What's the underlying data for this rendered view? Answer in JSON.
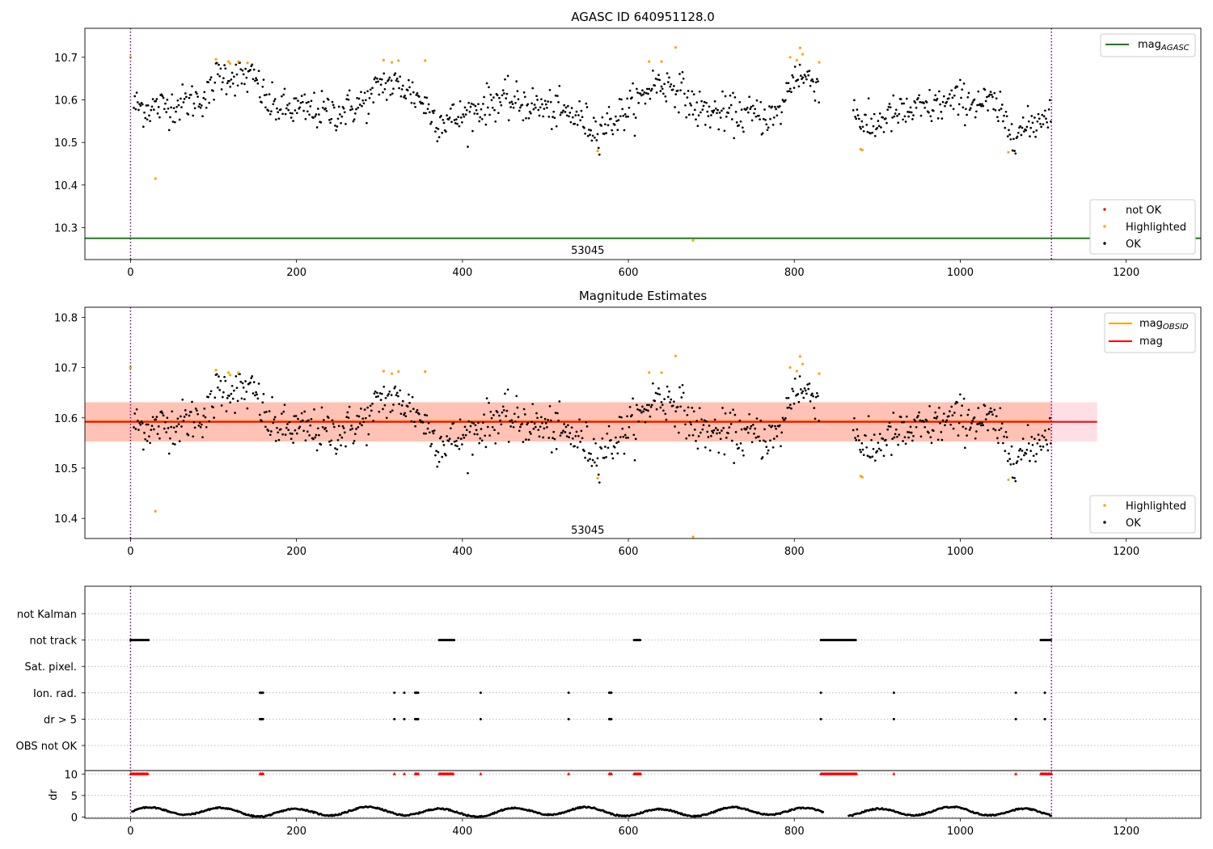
{
  "chart_data": [
    {
      "type": "scatter",
      "title": "AGASC ID 640951128.0",
      "xlim": [
        -55,
        1290
      ],
      "ylim": [
        10.225,
        10.768
      ],
      "xticks": [
        "0",
        "200",
        "400",
        "600",
        "800",
        "1000",
        "1200"
      ],
      "xtick_values": [
        0,
        200,
        400,
        600,
        800,
        1000,
        1200
      ],
      "yticks": [
        "10.3",
        "10.4",
        "10.5",
        "10.6",
        "10.7"
      ],
      "ytick_values": [
        10.3,
        10.4,
        10.5,
        10.6,
        10.7
      ],
      "vlines": [
        0,
        1110
      ],
      "obsid_label": "53045",
      "obsid_label_pos": [
        551,
        10.248
      ],
      "hline": {
        "name": "mag_AGASC",
        "value": 10.275,
        "color": "#008000"
      },
      "legend_top": [
        {
          "label": "mag",
          "sub": "AGASC",
          "color": "#008000"
        }
      ],
      "legend_bottom": [
        {
          "label": "not OK",
          "color": "#ff0000"
        },
        {
          "label": "Highlighted",
          "color": "#ffa500"
        },
        {
          "label": "OK",
          "color": "#000000"
        }
      ],
      "highlighted_points": [
        [
          0,
          10.7
        ],
        [
          30,
          10.415
        ],
        [
          103,
          10.695
        ],
        [
          118,
          10.69
        ],
        [
          120,
          10.685
        ],
        [
          130,
          10.69
        ],
        [
          141,
          10.687
        ],
        [
          305,
          10.693
        ],
        [
          315,
          10.688
        ],
        [
          323,
          10.692
        ],
        [
          355,
          10.692
        ],
        [
          563,
          10.48
        ],
        [
          625,
          10.69
        ],
        [
          640,
          10.69
        ],
        [
          657,
          10.723
        ],
        [
          678,
          10.27
        ],
        [
          795,
          10.7
        ],
        [
          803,
          10.693
        ],
        [
          807,
          10.722
        ],
        [
          810,
          10.707
        ],
        [
          830,
          10.688
        ],
        [
          880,
          10.484
        ],
        [
          882,
          10.482
        ],
        [
          1058,
          10.477
        ]
      ]
    },
    {
      "type": "scatter",
      "title": "Magnitude Estimates",
      "xlim": [
        -55,
        1290
      ],
      "ylim": [
        10.36,
        10.82
      ],
      "xticks": [
        "0",
        "200",
        "400",
        "600",
        "800",
        "1000",
        "1200"
      ],
      "xtick_values": [
        0,
        200,
        400,
        600,
        800,
        1000,
        1200
      ],
      "yticks": [
        "10.4",
        "10.5",
        "10.6",
        "10.7",
        "10.8"
      ],
      "ytick_values": [
        10.4,
        10.5,
        10.6,
        10.7,
        10.8
      ],
      "vlines": [
        0,
        1110
      ],
      "obsid_label": "53045",
      "obsid_label_pos": [
        551,
        10.378
      ],
      "mag": 10.592,
      "mag_band": [
        10.553,
        10.631
      ],
      "mag_obsid_band": [
        10.553,
        10.631
      ],
      "mag_obsid_band_x": [
        0,
        1110
      ],
      "legend_top": [
        {
          "label": "mag",
          "sub": "OBSID",
          "color": "#ffa500"
        },
        {
          "label": "mag",
          "sub": "",
          "color": "#ff0000"
        }
      ],
      "legend_bottom": [
        {
          "label": "Highlighted",
          "color": "#ffa500"
        },
        {
          "label": "OK",
          "color": "#000000"
        }
      ],
      "highlighted_points": [
        [
          0,
          10.7
        ],
        [
          30,
          10.414
        ],
        [
          103,
          10.695
        ],
        [
          118,
          10.69
        ],
        [
          120,
          10.685
        ],
        [
          130,
          10.69
        ],
        [
          305,
          10.693
        ],
        [
          315,
          10.688
        ],
        [
          323,
          10.692
        ],
        [
          355,
          10.692
        ],
        [
          563,
          10.48
        ],
        [
          625,
          10.69
        ],
        [
          640,
          10.69
        ],
        [
          657,
          10.723
        ],
        [
          678,
          10.362
        ],
        [
          795,
          10.7
        ],
        [
          803,
          10.693
        ],
        [
          807,
          10.722
        ],
        [
          810,
          10.707
        ],
        [
          830,
          10.688
        ],
        [
          880,
          10.484
        ],
        [
          882,
          10.482
        ],
        [
          1058,
          10.477
        ]
      ]
    },
    {
      "type": "scatter",
      "title": "",
      "xlim": [
        -55,
        1290
      ],
      "xticks": [
        "0",
        "200",
        "400",
        "600",
        "800",
        "1000",
        "1200"
      ],
      "xtick_values": [
        0,
        200,
        400,
        600,
        800,
        1000,
        1200
      ],
      "vlines": [
        0,
        1110
      ],
      "flag_categories": [
        "not Kalman",
        "not track",
        "Sat. pixel.",
        "Ion. rad.",
        "dr > 5",
        "OBS not OK"
      ],
      "flags": {
        "not track": [
          [
            0,
            22
          ],
          [
            372,
            390
          ],
          [
            607,
            615
          ],
          [
            832,
            875
          ],
          [
            1097,
            1110
          ]
        ],
        "Ion. rad.": [
          [
            156,
            160
          ],
          [
            318,
            318
          ],
          [
            330,
            330
          ],
          [
            343,
            347
          ],
          [
            422,
            422
          ],
          [
            528,
            528
          ],
          [
            577,
            580
          ],
          [
            832,
            832
          ],
          [
            920,
            920
          ],
          [
            1067,
            1067
          ],
          [
            1102,
            1102
          ]
        ],
        "dr > 5": [
          [
            156,
            160
          ],
          [
            318,
            318
          ],
          [
            330,
            330
          ],
          [
            343,
            347
          ],
          [
            422,
            422
          ],
          [
            528,
            528
          ],
          [
            577,
            580
          ],
          [
            832,
            832
          ],
          [
            920,
            920
          ],
          [
            1067,
            1067
          ],
          [
            1102,
            1102
          ]
        ],
        "OBS not OK": []
      },
      "dr_ylabel": "dr",
      "dr_yticks": [
        "0",
        "5",
        "10"
      ],
      "dr_ytick_values": [
        0,
        5,
        10
      ],
      "dr_ylim": [
        -0.3,
        10.8
      ],
      "dr_clipped_value": 10
    }
  ]
}
